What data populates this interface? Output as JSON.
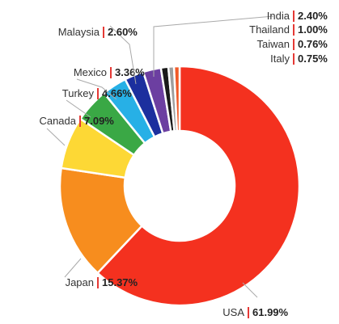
{
  "chart_data": {
    "type": "pie",
    "donut": true,
    "title": "",
    "categories": [
      "USA",
      "Japan",
      "Canada",
      "Turkey",
      "Mexico",
      "Malaysia",
      "India",
      "Thailand",
      "Taiwan",
      "Italy"
    ],
    "values": [
      61.99,
      15.37,
      7.09,
      4.66,
      3.36,
      2.6,
      2.4,
      1.0,
      0.76,
      0.75
    ],
    "value_labels": [
      "61.99%",
      "15.37%",
      "7.09%",
      "4.66%",
      "3.36%",
      "2.60%",
      "2.40%",
      "1.00%",
      "0.76%",
      "0.75%"
    ],
    "colors": [
      "#f4311f",
      "#f78d1e",
      "#fdd835",
      "#3aa845",
      "#27b0e6",
      "#1c2f9e",
      "#6c3fa1",
      "#1a1a1a",
      "#9e9e9e",
      "#f05a28"
    ],
    "separator_color": "#e53935",
    "legend": "none (labels with leader lines)"
  }
}
